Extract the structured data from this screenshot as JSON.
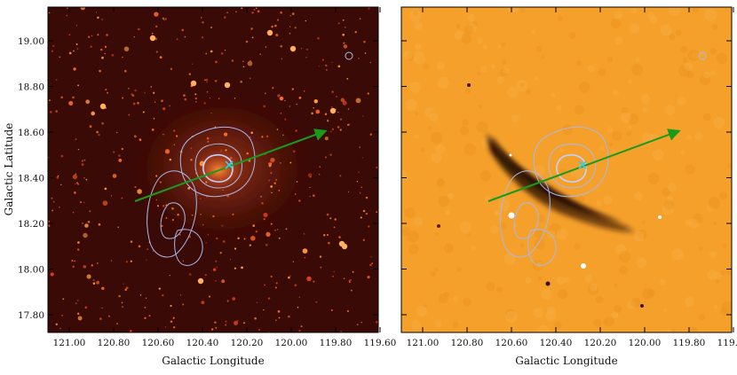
{
  "figure": {
    "left_panel": {
      "xlabel": "Galactic Longitude",
      "ylabel": "Galactic Latitude",
      "xticks": [
        "121.00",
        "120.80",
        "120.60",
        "120.40",
        "120.20",
        "120.00",
        "119.80",
        "119.60"
      ],
      "yticks": [
        "19.00",
        "18.80",
        "18.60",
        "18.40",
        "18.20",
        "18.00",
        "17.80"
      ],
      "colormap": "red-hot",
      "background_color": "#3a0a06"
    },
    "right_panel": {
      "xlabel": "Galactic Longitude",
      "xticks": [
        "121.00",
        "120.80",
        "120.60",
        "120.40",
        "120.20",
        "120.00",
        "119.80",
        "119.60"
      ],
      "colormap": "orange",
      "background_color": "#f5a02a"
    },
    "colors": {
      "contour": "#aab8e8",
      "arrow": "#1a9a1a",
      "marker": "#33ccee"
    }
  }
}
